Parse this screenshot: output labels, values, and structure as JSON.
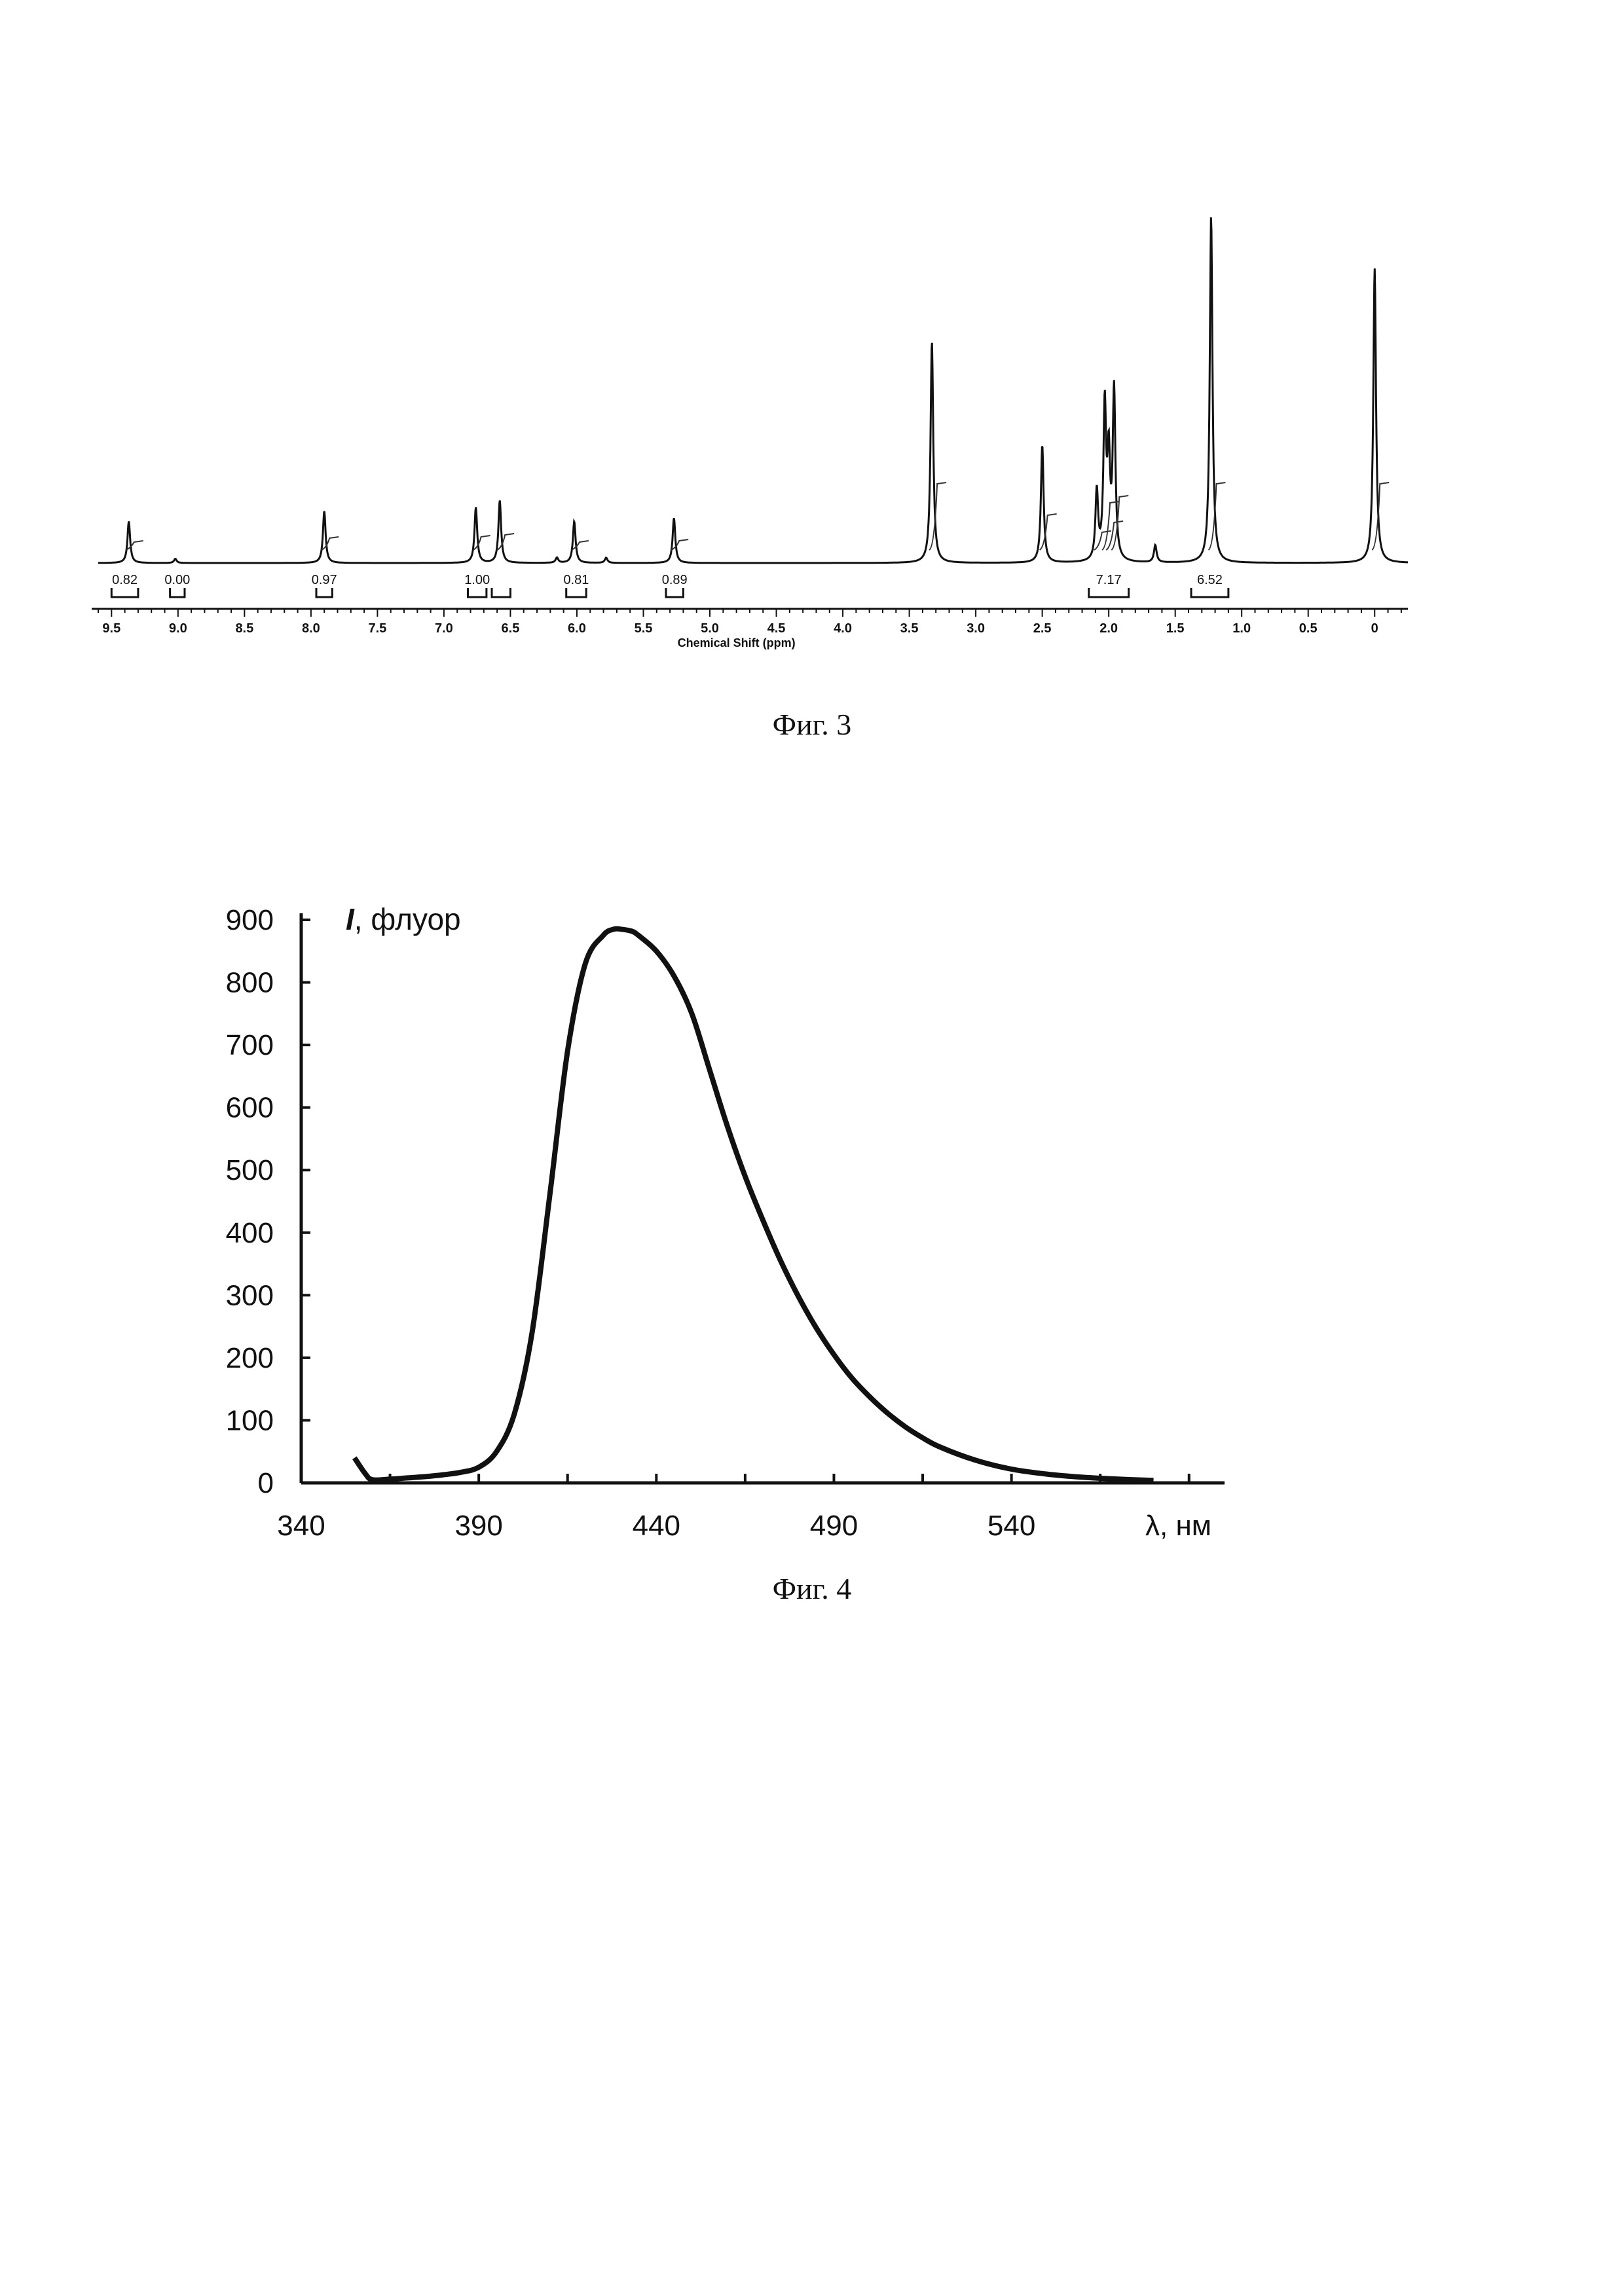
{
  "fig3_caption": "Фиг. 3",
  "fig4_caption": "Фиг. 4",
  "chart_data": [
    {
      "type": "line",
      "xlabel": "Chemical Shift (ppm)",
      "xlim": [
        9.6,
        -0.25
      ],
      "x_reversed": true,
      "ylim": [
        0,
        1
      ],
      "x_tick_labels": [
        "9.5",
        "9.0",
        "8.5",
        "8.0",
        "7.5",
        "7.0",
        "6.5",
        "6.0",
        "5.5",
        "5.0",
        "4.5",
        "4.0",
        "3.5",
        "3.0",
        "2.5",
        "2.0",
        "1.5",
        "1.0",
        "0.5",
        "0"
      ],
      "x_ticks": [
        9.5,
        9.0,
        8.5,
        8.0,
        7.5,
        7.0,
        6.5,
        6.0,
        5.5,
        5.0,
        4.5,
        4.0,
        3.5,
        3.0,
        2.5,
        2.0,
        1.5,
        1.0,
        0.5,
        0
      ],
      "peaks": [
        {
          "ppm": 9.37,
          "height": 0.12
        },
        {
          "ppm": 9.02,
          "height": 0.012
        },
        {
          "ppm": 7.9,
          "height": 0.15
        },
        {
          "ppm": 6.76,
          "height": 0.16
        },
        {
          "ppm": 6.58,
          "height": 0.18
        },
        {
          "ppm": 6.15,
          "height": 0.015
        },
        {
          "ppm": 6.02,
          "height": 0.12
        },
        {
          "ppm": 5.78,
          "height": 0.015
        },
        {
          "ppm": 5.27,
          "height": 0.13
        },
        {
          "ppm": 3.33,
          "height": 0.64
        },
        {
          "ppm": 2.5,
          "height": 0.34
        },
        {
          "ppm": 2.09,
          "height": 0.2
        },
        {
          "ppm": 2.03,
          "height": 0.44
        },
        {
          "ppm": 2.0,
          "height": 0.28
        },
        {
          "ppm": 1.96,
          "height": 0.49
        },
        {
          "ppm": 1.65,
          "height": 0.05
        },
        {
          "ppm": 1.23,
          "height": 1.0
        },
        {
          "ppm": 0.0,
          "height": 0.85
        }
      ],
      "integrals": [
        {
          "label": "0.82",
          "from": 9.5,
          "to": 9.3
        },
        {
          "label": "0.00",
          "from": 9.06,
          "to": 8.95
        },
        {
          "label": "0.97",
          "from": 7.96,
          "to": 7.84
        },
        {
          "label": "1.00",
          "from": 6.82,
          "to": 6.68
        },
        {
          "label": "",
          "from": 6.64,
          "to": 6.5
        },
        {
          "label": "0.81",
          "from": 6.08,
          "to": 5.93
        },
        {
          "label": "0.89",
          "from": 5.33,
          "to": 5.2
        },
        {
          "label": "7.17",
          "from": 2.15,
          "to": 1.85
        },
        {
          "label": "6.52",
          "from": 1.38,
          "to": 1.1
        }
      ]
    },
    {
      "type": "line",
      "ylabel": "I",
      "ylabel_suffix": ", флуор",
      "xlabel": "λ, нм",
      "xlim": [
        340,
        600
      ],
      "ylim": [
        0,
        900
      ],
      "x_ticks": [
        340,
        390,
        440,
        490,
        540
      ],
      "y_ticks": [
        0,
        100,
        200,
        300,
        400,
        500,
        600,
        700,
        800,
        900
      ],
      "series": [
        {
          "x": [
            355,
            358,
            360,
            365,
            370,
            375,
            380,
            385,
            390,
            395,
            400,
            405,
            410,
            415,
            420,
            425,
            428,
            430,
            433,
            435,
            440,
            445,
            450,
            455,
            460,
            465,
            470,
            475,
            480,
            485,
            490,
            495,
            500,
            505,
            510,
            515,
            520,
            530,
            540,
            550,
            560,
            570,
            580
          ],
          "y": [
            40,
            15,
            5,
            6,
            8,
            10,
            13,
            17,
            25,
            50,
            110,
            240,
            460,
            690,
            830,
            875,
            885,
            885,
            882,
            875,
            850,
            810,
            750,
            660,
            570,
            490,
            420,
            355,
            298,
            248,
            205,
            168,
            138,
            112,
            90,
            72,
            57,
            36,
            22,
            14,
            9,
            6,
            4
          ]
        }
      ]
    }
  ]
}
